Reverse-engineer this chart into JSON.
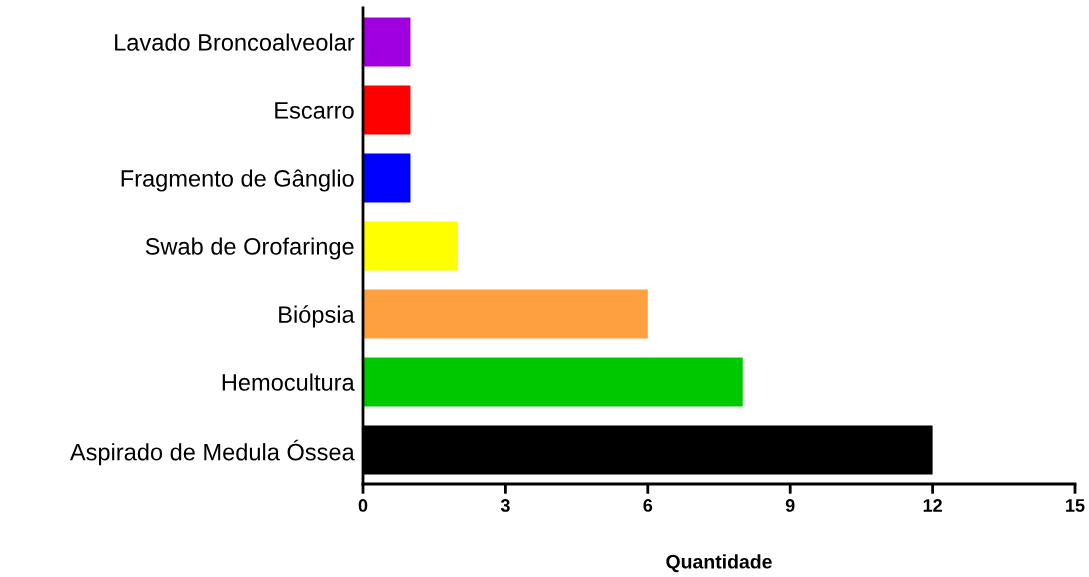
{
  "chart_data": {
    "type": "bar",
    "orientation": "horizontal",
    "xlabel": "Quantidade",
    "categories": [
      "Lavado Broncoalveolar",
      "Escarro",
      "Fragmento de Gânglio",
      "Swab de Orofaringe",
      "Biópsia",
      "Hemocultura",
      "Aspirado de Medula Óssea"
    ],
    "values": [
      1,
      1,
      1,
      2,
      6,
      8,
      12
    ],
    "colors": [
      "#a000e0",
      "#ff0000",
      "#0000ff",
      "#ffff00",
      "#ffa040",
      "#00c800",
      "#000000"
    ],
    "xlim": [
      0,
      15
    ],
    "xticks": [
      0,
      3,
      6,
      9,
      12,
      15
    ],
    "grid": false,
    "legend": false
  }
}
